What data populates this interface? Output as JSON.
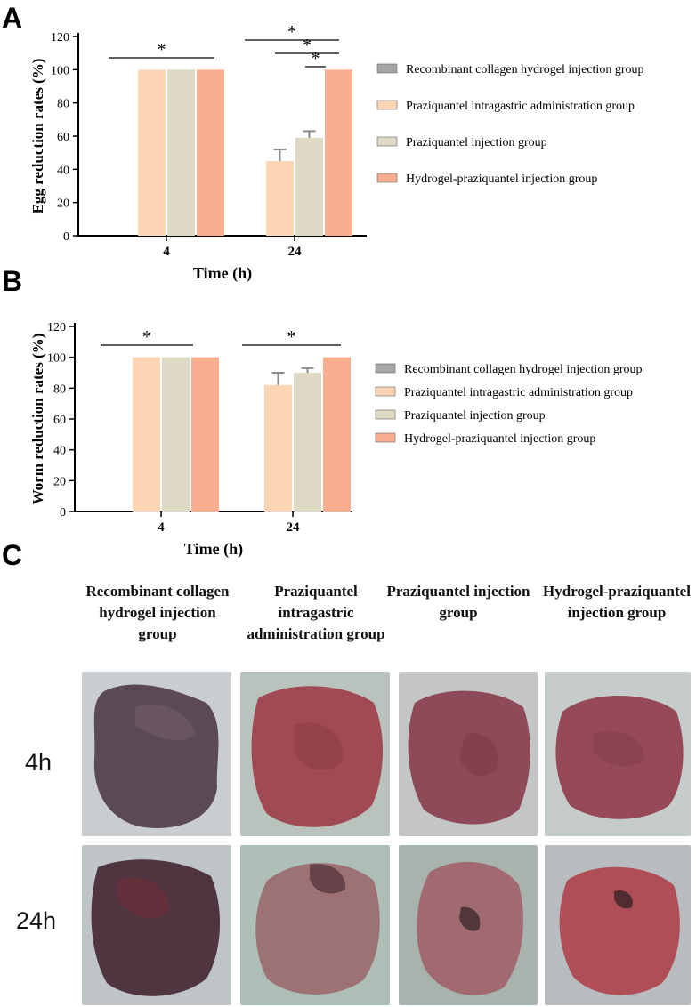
{
  "panels": {
    "a": "A",
    "b": "B",
    "c": "C"
  },
  "chart_data": [
    {
      "type": "bar",
      "title": "",
      "xlabel": "Time (h)",
      "ylabel": "Egg reduction rates (%)",
      "categories": [
        "4",
        "24"
      ],
      "ylim": [
        0,
        120
      ],
      "yticks": [
        "0",
        "20",
        "40",
        "60",
        "80",
        "100",
        "120"
      ],
      "series": [
        {
          "name": "Recombinant collagen hydrogel injection group",
          "values": [
            0,
            0
          ],
          "errors": [
            0,
            0
          ],
          "color": "#a6a6a6"
        },
        {
          "name": "Praziquantel intragastric administration group",
          "values": [
            100,
            45
          ],
          "errors": [
            0,
            7
          ],
          "color": "#fcd5b4"
        },
        {
          "name": "Praziquantel injection group",
          "values": [
            100,
            59
          ],
          "errors": [
            0,
            4
          ],
          "color": "#ddd9c4"
        },
        {
          "name": "Hydrogel-praziquantel injection group",
          "values": [
            100,
            100
          ],
          "errors": [
            0,
            0
          ],
          "color": "#f9ae8f"
        }
      ],
      "significance": [
        "*",
        "*",
        "*",
        "*"
      ],
      "legend_position": "right"
    },
    {
      "type": "bar",
      "title": "",
      "xlabel": "Time (h)",
      "ylabel": "Worm reduction rates (%)",
      "categories": [
        "4",
        "24"
      ],
      "ylim": [
        0,
        120
      ],
      "yticks": [
        "0",
        "20",
        "40",
        "60",
        "80",
        "100",
        "120"
      ],
      "series": [
        {
          "name": "Recombinant collagen hydrogel injection group",
          "values": [
            0,
            0
          ],
          "errors": [
            0,
            0
          ],
          "color": "#a6a6a6"
        },
        {
          "name": "Praziquantel intragastric administration group",
          "values": [
            100,
            82
          ],
          "errors": [
            0,
            8
          ],
          "color": "#fcd5b4"
        },
        {
          "name": "Praziquantel injection group",
          "values": [
            100,
            90
          ],
          "errors": [
            0,
            3
          ],
          "color": "#ddd9c4"
        },
        {
          "name": "Hydrogel-praziquantel injection group",
          "values": [
            100,
            100
          ],
          "errors": [
            0,
            0
          ],
          "color": "#f9ae8f"
        }
      ],
      "significance": [
        "*",
        "*"
      ],
      "legend_position": "right"
    }
  ],
  "photo_panel": {
    "columns": [
      "Recombinant collagen hydrogel injection group",
      "Praziquantel intragastric administration group",
      "Praziquantel injection group",
      "Hydrogel-praziquantel injection group"
    ],
    "rows": [
      "4h",
      "24h"
    ]
  }
}
